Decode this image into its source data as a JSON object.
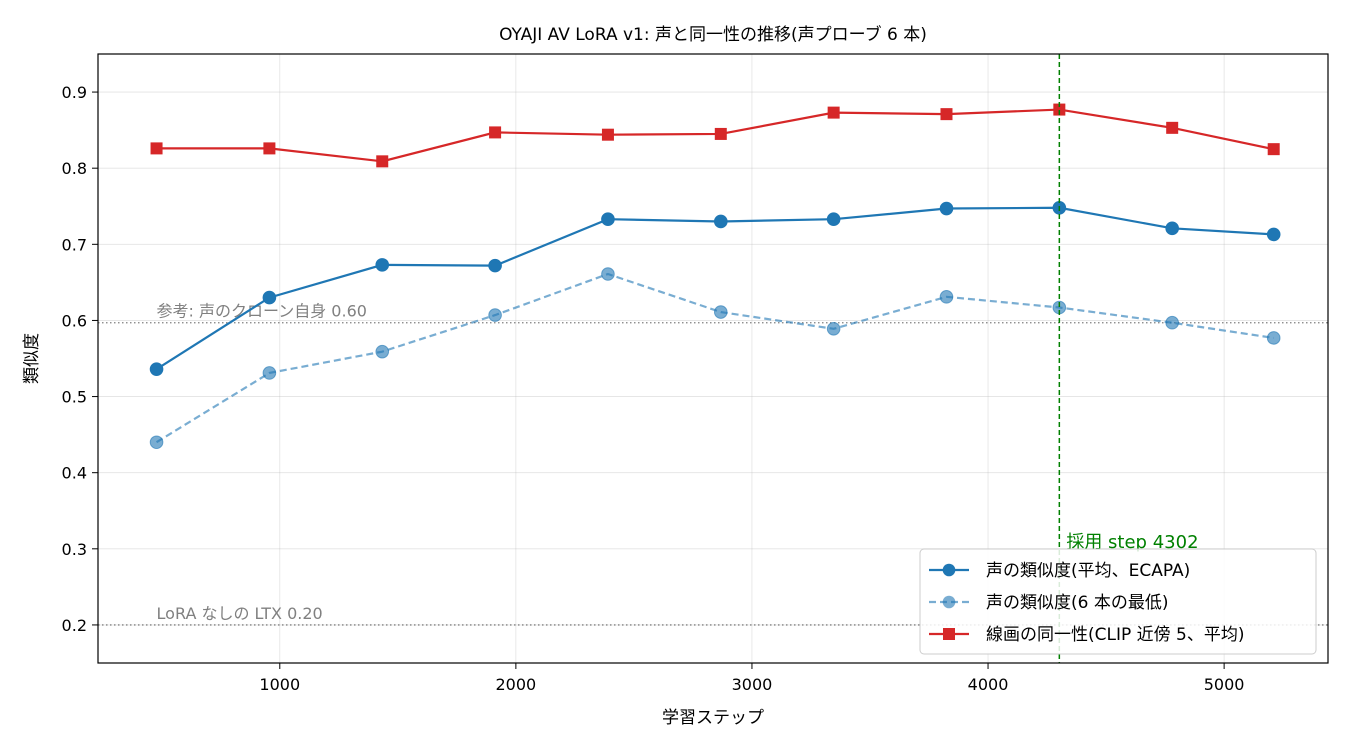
{
  "chart_data": {
    "type": "line",
    "title": "OYAJI AV LoRA v1: 声と同一性の推移(声プローブ 6 本)",
    "xlabel": "学習ステップ",
    "ylabel": "類似度",
    "xlim": [
      230,
      5440
    ],
    "ylim": [
      0.15,
      0.95
    ],
    "xticks": [
      1000,
      2000,
      3000,
      4000,
      5000
    ],
    "yticks": [
      0.2,
      0.3,
      0.4,
      0.5,
      0.6,
      0.7,
      0.8,
      0.9
    ],
    "ytick_labels": [
      "0.2",
      "0.3",
      "0.4",
      "0.5",
      "0.6",
      "0.7",
      "0.8",
      "0.9"
    ],
    "grid": true,
    "legend_position": "lower-right",
    "x": [
      478,
      956,
      1434,
      1912,
      2390,
      2868,
      3346,
      3824,
      4302,
      4780,
      5210
    ],
    "series": [
      {
        "name": "声の類似度(平均、ECAPA)",
        "values": [
          0.536,
          0.63,
          0.673,
          0.672,
          0.733,
          0.73,
          0.733,
          0.747,
          0.748,
          0.721,
          0.713
        ],
        "color": "#1f77b4",
        "marker": "circle",
        "style": "solid"
      },
      {
        "name": "声の類似度(6 本の最低)",
        "values": [
          0.44,
          0.531,
          0.559,
          0.607,
          0.661,
          0.611,
          0.589,
          0.631,
          0.617,
          0.597,
          0.577
        ],
        "color": "#1f77b4",
        "marker": "circle",
        "style": "dashed"
      },
      {
        "name": "線画の同一性(CLIP 近傍 5、平均)",
        "values": [
          0.826,
          0.826,
          0.809,
          0.847,
          0.844,
          0.845,
          0.873,
          0.871,
          0.877,
          0.853,
          0.825
        ],
        "color": "#d62728",
        "marker": "square",
        "style": "solid"
      }
    ],
    "reference_lines": [
      {
        "y": 0.597,
        "label": "参考: 声のクローン自身 0.60",
        "color": "#808080"
      },
      {
        "y": 0.2,
        "label": "LoRA なしの LTX 0.20",
        "color": "#808080"
      }
    ],
    "vertical_line": {
      "x": 4302,
      "label": "採用 step 4302",
      "color": "#008000"
    }
  }
}
